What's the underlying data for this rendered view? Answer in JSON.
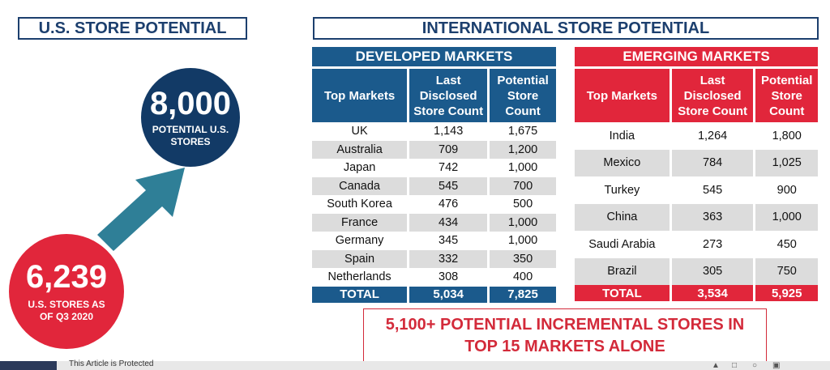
{
  "us_header": "U.S. STORE POTENTIAL",
  "intl_header": "INTERNATIONAL STORE POTENTIAL",
  "potential_circle": {
    "value": "8,000",
    "line1": "POTENTIAL U.S.",
    "line2": "STORES",
    "color": "#123a66"
  },
  "current_circle": {
    "value": "6,239",
    "line1": "U.S. STORES AS",
    "line2": "OF Q3 2020",
    "color": "#e1263b"
  },
  "arrow_color": "#2f7f97",
  "developed": {
    "title": "DEVELOPED MARKETS",
    "col1": "Top Markets",
    "col2": "Last Disclosed Store Count",
    "col3": "Potential Store Count",
    "color": "#1b5a8c",
    "rows": [
      {
        "market": "UK",
        "last": "1,143",
        "potential": "1,675"
      },
      {
        "market": "Australia",
        "last": "709",
        "potential": "1,200"
      },
      {
        "market": "Japan",
        "last": "742",
        "potential": "1,000"
      },
      {
        "market": "Canada",
        "last": "545",
        "potential": "700"
      },
      {
        "market": "South Korea",
        "last": "476",
        "potential": "500"
      },
      {
        "market": "France",
        "last": "434",
        "potential": "1,000"
      },
      {
        "market": "Germany",
        "last": "345",
        "potential": "1,000"
      },
      {
        "market": "Spain",
        "last": "332",
        "potential": "350"
      },
      {
        "market": "Netherlands",
        "last": "308",
        "potential": "400"
      }
    ],
    "total": {
      "label": "TOTAL",
      "last": "5,034",
      "potential": "7,825"
    }
  },
  "emerging": {
    "title": "EMERGING MARKETS",
    "col1": "Top Markets",
    "col2": "Last Disclosed Store Count",
    "col3": "Potential Store Count",
    "color": "#e1263b",
    "rows": [
      {
        "market": "India",
        "last": "1,264",
        "potential": "1,800"
      },
      {
        "market": "Mexico",
        "last": "784",
        "potential": "1,025"
      },
      {
        "market": "Turkey",
        "last": "545",
        "potential": "900"
      },
      {
        "market": "China",
        "last": "363",
        "potential": "1,000"
      },
      {
        "market": "Saudi Arabia",
        "last": "273",
        "potential": "450"
      },
      {
        "market": "Brazil",
        "last": "305",
        "potential": "750"
      }
    ],
    "total": {
      "label": "TOTAL",
      "last": "3,534",
      "potential": "5,925"
    }
  },
  "callout": {
    "line1": "5,100+ POTENTIAL INCREMENTAL STORES IN",
    "line2": "TOP 15 MARKETS ALONE"
  },
  "footer": {
    "text": "This Article is Protected"
  }
}
